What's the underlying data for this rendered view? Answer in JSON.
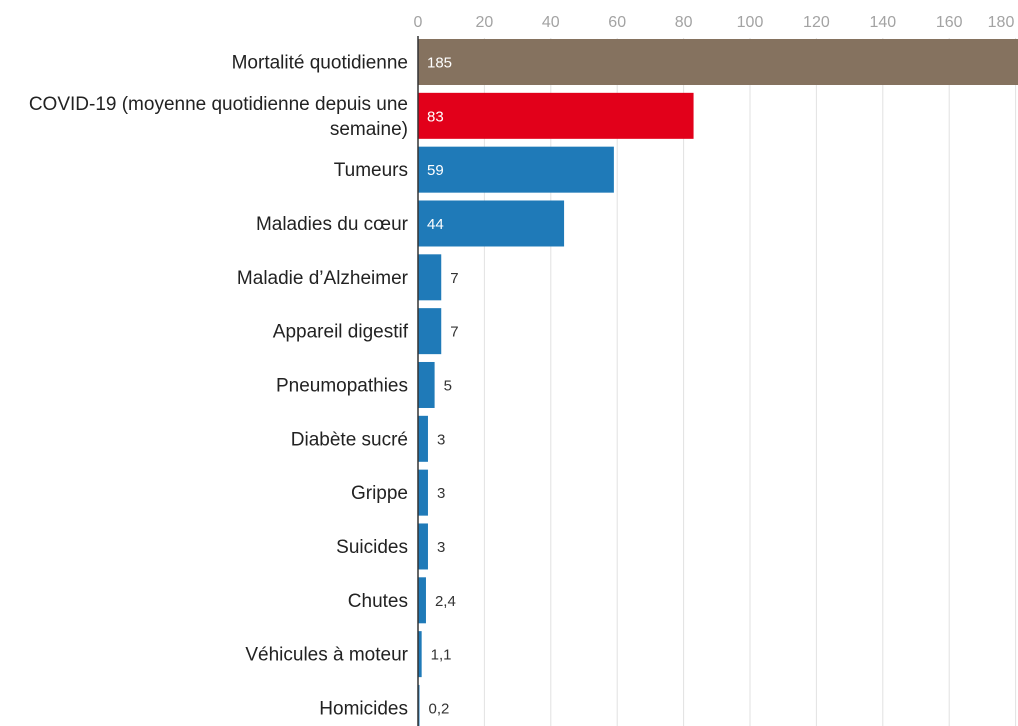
{
  "chart_data": {
    "type": "bar",
    "orientation": "horizontal",
    "title": "",
    "xlabel": "",
    "ylabel": "",
    "xlim": [
      0,
      180
    ],
    "ticks": [
      0,
      20,
      40,
      60,
      80,
      100,
      120,
      140,
      160,
      180
    ],
    "grid": true,
    "categories": [
      [
        "Mortalité quotidienne"
      ],
      [
        "COVID-19 (moyenne quotidienne depuis une",
        "semaine)"
      ],
      [
        "Tumeurs"
      ],
      [
        "Maladies du cœur"
      ],
      [
        "Maladie d’Alzheimer"
      ],
      [
        "Appareil digestif"
      ],
      [
        "Pneumopathies"
      ],
      [
        "Diabète sucré"
      ],
      [
        "Grippe"
      ],
      [
        "Suicides"
      ],
      [
        "Chutes"
      ],
      [
        "Véhicules à moteur"
      ],
      [
        "Homicides"
      ]
    ],
    "values": [
      185,
      83,
      59,
      44,
      7,
      7,
      5,
      3,
      3,
      3,
      2.4,
      1.1,
      0.2
    ],
    "value_labels": [
      "185",
      "83",
      "59",
      "44",
      "7",
      "7",
      "5",
      "3",
      "3",
      "3",
      "2,4",
      "1,1",
      "0,2"
    ],
    "colors": [
      "#85725f",
      "#e2001a",
      "#1f7ab8",
      "#1f7ab8",
      "#1f7ab8",
      "#1f7ab8",
      "#1f7ab8",
      "#1f7ab8",
      "#1f7ab8",
      "#1f7ab8",
      "#1f7ab8",
      "#1f7ab8",
      "#1f7ab8"
    ]
  }
}
